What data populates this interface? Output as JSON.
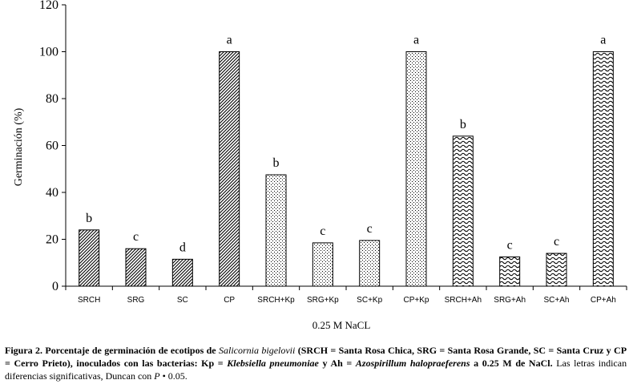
{
  "chart_data": {
    "type": "bar",
    "ylabel": "Germinación (%)",
    "xlabel": "0.25 M NaCL",
    "ylim": [
      0,
      120
    ],
    "yticks": [
      0,
      20,
      40,
      60,
      80,
      100,
      120
    ],
    "grid": false,
    "categories": [
      "SRCH",
      "SRG",
      "SC",
      "CP",
      "SRCH+Kp",
      "SRG+Kp",
      "SC+Kp",
      "CP+Kp",
      "SRCH+Ah",
      "SRG+Ah",
      "SC+Ah",
      "CP+Ah"
    ],
    "values": [
      24,
      16,
      11.5,
      100,
      47.5,
      18.5,
      19.5,
      100,
      64,
      12.5,
      14,
      100
    ],
    "significance_letters": [
      "b",
      "c",
      "d",
      "a",
      "b",
      "c",
      "c",
      "a",
      "b",
      "c",
      "c",
      "a"
    ],
    "fill_patterns": [
      "diagonal",
      "diagonal",
      "diagonal",
      "diagonal",
      "dots",
      "dots",
      "dots",
      "dots",
      "waves",
      "waves",
      "waves",
      "waves"
    ]
  },
  "caption": {
    "fig_label": "Figura 2.",
    "bold_1": "Porcentaje de germinación de ecotipos de",
    "species": "Salicornia bigelovii",
    "bold_2": "(SRCH = Santa Rosa Chica, SRG = Santa Rosa Grande, SC = Santa Cruz y CP = Cerro Prieto), inoculados con las bacterias: Kp =",
    "bacteria_1": "Klebsiella  pneumoniae",
    "bold_3": "y Ah =",
    "bacteria_2": "Azospirillum halopraeferens",
    "bold_4": "a 0.25 M de NaCl.",
    "normal_1": "Las letras indican diferencias significativas, Duncan con",
    "p_symbol": "P",
    "normal_2": "•   0.05."
  }
}
